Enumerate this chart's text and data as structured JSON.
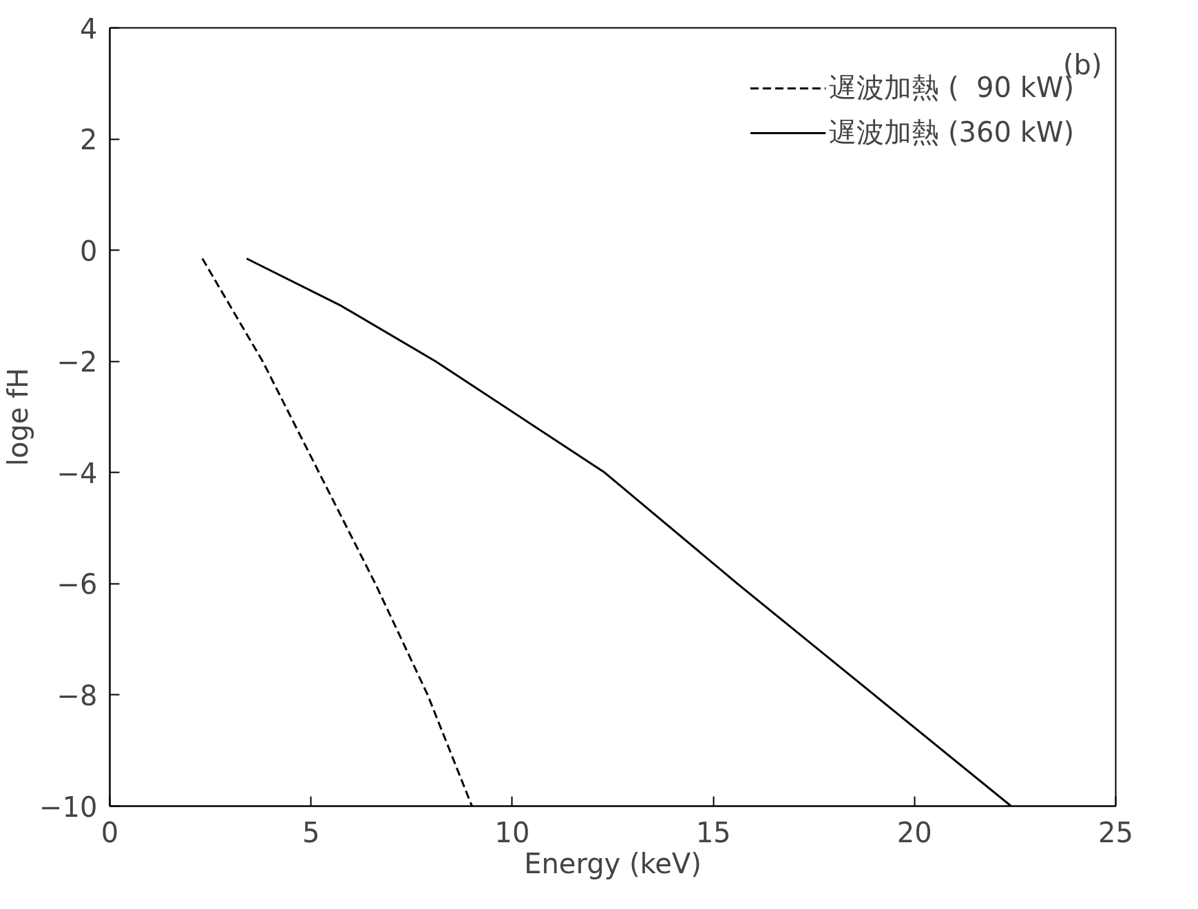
{
  "chart_data": {
    "type": "line",
    "xlabel": "Energy (keV)",
    "ylabel": "loge fH",
    "annotations": [
      "(b)"
    ],
    "xlim": [
      0,
      25
    ],
    "ylim": [
      -10,
      4
    ],
    "xticks": [
      0,
      5,
      10,
      15,
      20,
      25
    ],
    "yticks": [
      -10,
      -8,
      -6,
      -4,
      -2,
      0,
      2,
      4
    ],
    "grid": false,
    "legend": "top right",
    "series": [
      {
        "name": "遅波加熱 (  90 kW)",
        "color": "#000000",
        "line_style": "dashed",
        "x": [
          2.3,
          3.8,
          5.2,
          6.6,
          7.9,
          9.0
        ],
        "values": [
          -0.15,
          -2,
          -4,
          -6,
          -8,
          -10
        ]
      },
      {
        "name": "遅波加熱 (360 kW)",
        "color": "#000000",
        "line_style": "solid",
        "x": [
          3.4,
          5.75,
          8.1,
          12.3,
          15.6,
          19.0,
          22.4
        ],
        "values": [
          -0.15,
          -1,
          -2,
          -4,
          -6,
          -8,
          -10
        ]
      }
    ]
  }
}
